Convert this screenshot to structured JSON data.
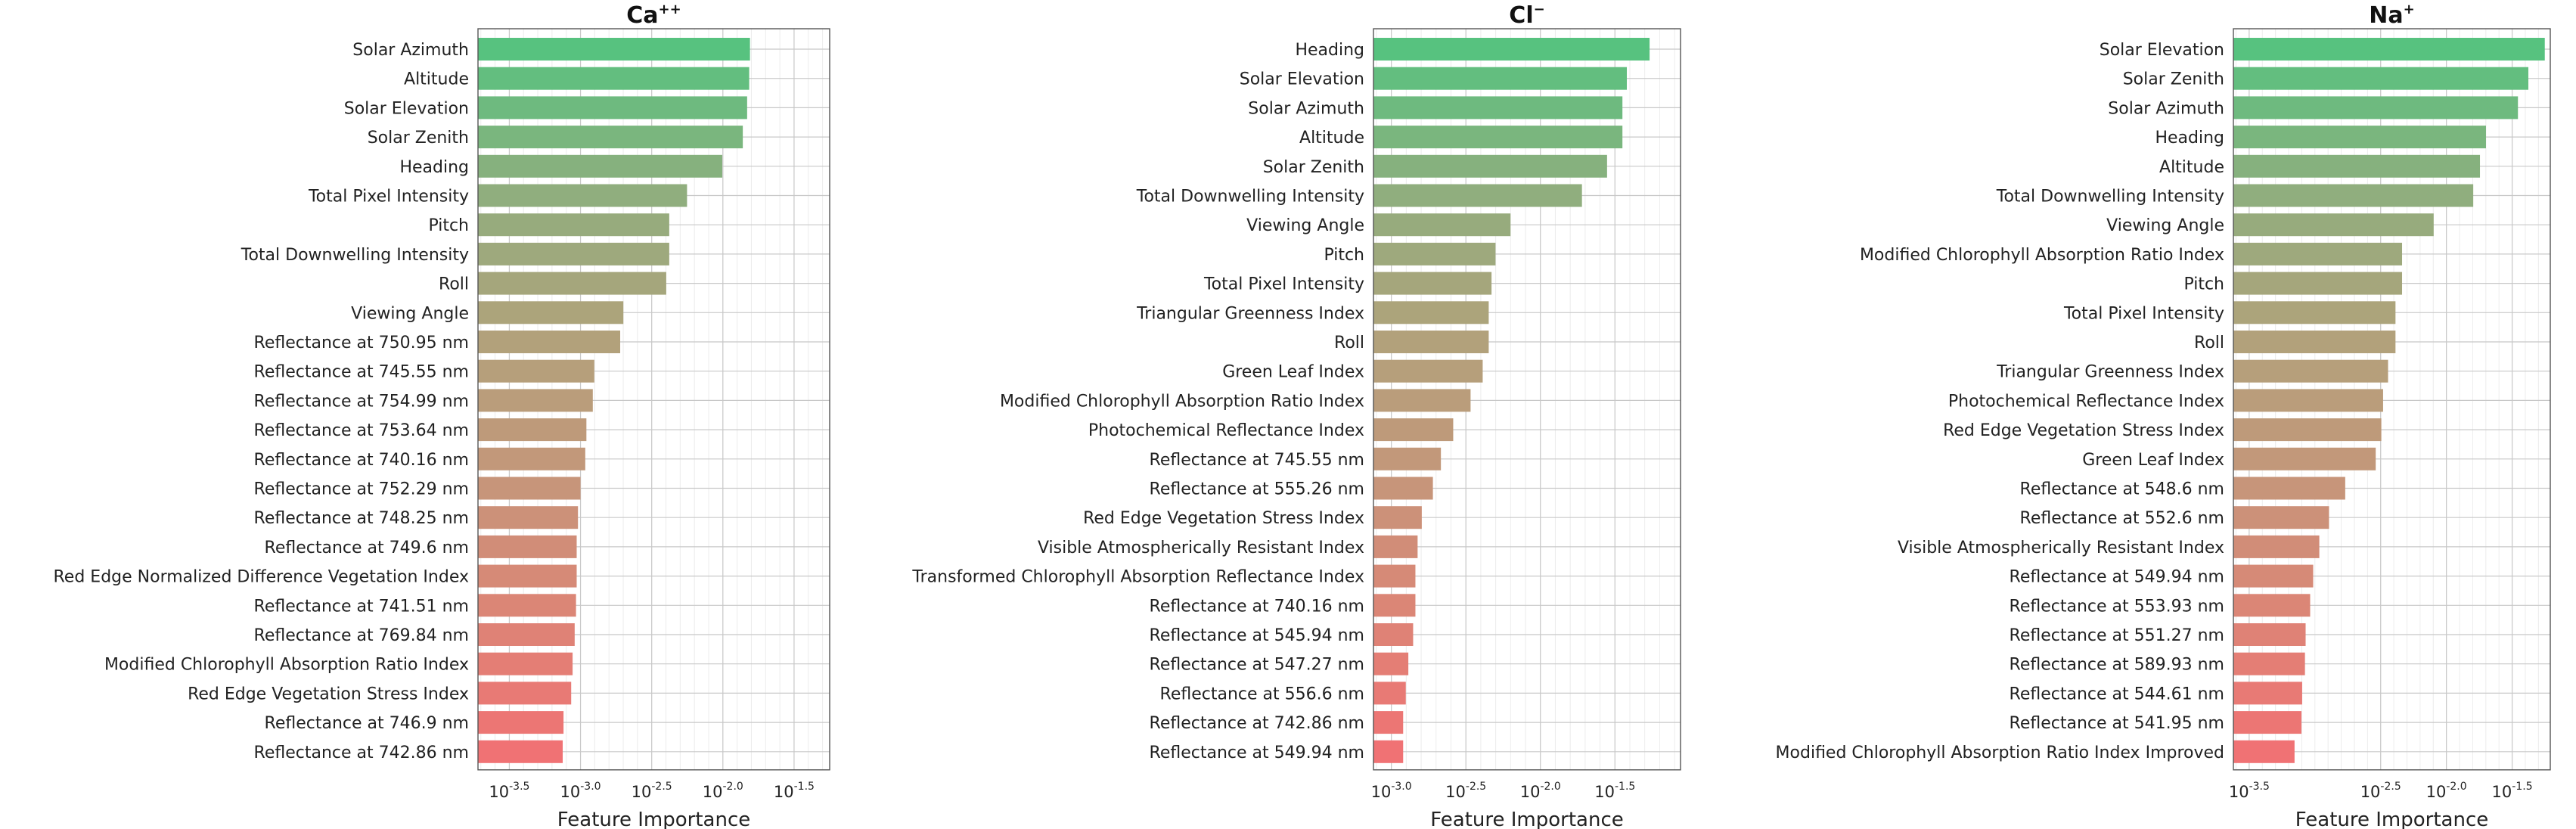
{
  "chart_data": [
    {
      "type": "bar",
      "orientation": "horizontal",
      "title": "Ca",
      "title_sup": "++",
      "xlabel": "Feature Importance",
      "xscale": "log10",
      "xlim": [
        -3.72,
        -1.25
      ],
      "xticks": [
        {
          "label": "10",
          "sup": "-3.5",
          "value": -3.5
        },
        {
          "label": "10",
          "sup": "-3.0",
          "value": -3.0
        },
        {
          "label": "10",
          "sup": "-2.5",
          "value": -2.5
        },
        {
          "label": "10",
          "sup": "-2.0",
          "value": -2.0
        },
        {
          "label": "10",
          "sup": "-1.5",
          "value": -1.5
        }
      ],
      "categories": [
        "Solar Azimuth",
        "Altitude",
        "Solar Elevation",
        "Solar Zenith",
        "Heading",
        "Total Pixel Intensity",
        "Pitch",
        "Total Downwelling Intensity",
        "Roll",
        "Viewing Angle",
        "Reflectance at 750.95 nm",
        "Reflectance at 745.55 nm",
        "Reflectance at 754.99 nm",
        "Reflectance at 753.64 nm",
        "Reflectance at 740.16 nm",
        "Reflectance at 752.29 nm",
        "Reflectance at 748.25 nm",
        "Reflectance at 749.6 nm",
        "Red Edge Normalized Difference Vegetation Index",
        "Reflectance at 741.51 nm",
        "Reflectance at 769.84 nm",
        "Modified Chlorophyll Absorption Ratio Index",
        "Red Edge Vegetation Stress Index",
        "Reflectance at 746.9 nm",
        "Reflectance at 742.86 nm"
      ],
      "values": [
        0.0155,
        0.0153,
        0.0148,
        0.0138,
        0.0099,
        0.0056,
        0.0042,
        0.0042,
        0.004,
        0.002,
        0.0019,
        0.00125,
        0.00122,
        0.0011,
        0.00108,
        0.001,
        0.00096,
        0.00094,
        0.00094,
        0.00093,
        0.00091,
        0.00088,
        0.00086,
        0.00076,
        0.00075
      ]
    },
    {
      "type": "bar",
      "orientation": "horizontal",
      "title": "Cl",
      "title_sup": "−",
      "xlabel": "Feature Importance",
      "xscale": "log10",
      "xlim": [
        -3.12,
        -1.06
      ],
      "xticks": [
        {
          "label": "10",
          "sup": "-3.0",
          "value": -3.0
        },
        {
          "label": "10",
          "sup": "-2.5",
          "value": -2.5
        },
        {
          "label": "10",
          "sup": "-2.0",
          "value": -2.0
        },
        {
          "label": "10",
          "sup": "-1.5",
          "value": -1.5
        }
      ],
      "categories": [
        "Heading",
        "Solar Elevation",
        "Solar Azimuth",
        "Altitude",
        "Solar Zenith",
        "Total Downwelling Intensity",
        "Viewing Angle",
        "Pitch",
        "Total Pixel Intensity",
        "Triangular Greenness Index",
        "Roll",
        "Green Leaf Index",
        "Modified Chlorophyll Absorption Ratio Index",
        "Photochemical Reflectance Index",
        "Reflectance at 745.55 nm",
        "Reflectance at 555.26 nm",
        "Red Edge Vegetation Stress Index",
        "Visible Atmospherically Resistant Index",
        "Transformed Chlorophyll Absorption Reflectance Index",
        "Reflectance at 740.16 nm",
        "Reflectance at 545.94 nm",
        "Reflectance at 547.27 nm",
        "Reflectance at 556.6 nm",
        "Reflectance at 742.86 nm",
        "Reflectance at 549.94 nm"
      ],
      "values": [
        0.054,
        0.038,
        0.0355,
        0.0355,
        0.028,
        0.019,
        0.0063,
        0.005,
        0.0047,
        0.0045,
        0.0045,
        0.0041,
        0.0034,
        0.0026,
        0.00215,
        0.0019,
        0.0016,
        0.0015,
        0.00145,
        0.00145,
        0.0014,
        0.0013,
        0.00125,
        0.0012,
        0.0012
      ]
    },
    {
      "type": "bar",
      "orientation": "horizontal",
      "title": "Na",
      "title_sup": "+",
      "xlabel": "Feature Importance",
      "xscale": "log10",
      "xlim": [
        -3.62,
        -1.21
      ],
      "xticks": [
        {
          "label": "10",
          "sup": "-3.5",
          "value": -3.5
        },
        {
          "label": "10",
          "sup": "-2.5",
          "value": -2.5
        },
        {
          "label": "10",
          "sup": "-2.0",
          "value": -2.0
        },
        {
          "label": "10",
          "sup": "-1.5",
          "value": -1.5
        }
      ],
      "categories": [
        "Solar Elevation",
        "Solar Zenith",
        "Solar Azimuth",
        "Heading",
        "Altitude",
        "Total Downwelling Intensity",
        "Viewing Angle",
        "Modified Chlorophyll Absorption Ratio Index",
        "Pitch",
        "Total Pixel Intensity",
        "Roll",
        "Triangular Greenness Index",
        "Photochemical Reflectance Index",
        "Red Edge Vegetation Stress Index",
        "Green Leaf Index",
        "Reflectance at 548.6 nm",
        "Reflectance at 552.6 nm",
        "Visible Atmospherically Resistant Index",
        "Reflectance at 549.94 nm",
        "Reflectance at 553.93 nm",
        "Reflectance at 551.27 nm",
        "Reflectance at 589.93 nm",
        "Reflectance at 544.61 nm",
        "Reflectance at 541.95 nm",
        "Modified Chlorophyll Absorption Ratio Index Improved"
      ],
      "values": [
        0.056,
        0.042,
        0.035,
        0.02,
        0.018,
        0.016,
        0.008,
        0.0046,
        0.0046,
        0.0041,
        0.0041,
        0.0036,
        0.0033,
        0.0032,
        0.0029,
        0.0017,
        0.00128,
        0.00108,
        0.00097,
        0.00092,
        0.00085,
        0.00084,
        0.0008,
        0.00079,
        0.0007
      ]
    }
  ],
  "colors": {
    "top": "#57c27f",
    "bottom": "#f07274"
  }
}
